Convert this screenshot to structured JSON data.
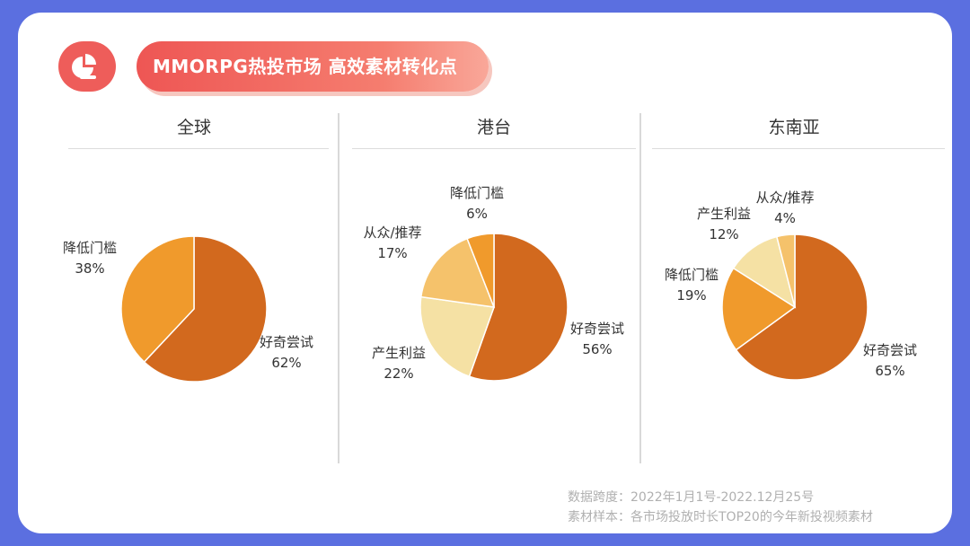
{
  "header": {
    "title": "MMORPG热投市场  高效素材转化点",
    "icon": "pie-chart-icon",
    "accent": "#ee5d5a"
  },
  "colors": {
    "dark_orange": "#d2691e",
    "orange": "#f09a2c",
    "light_orange": "#f5c26b",
    "cream": "#f5e1a4"
  },
  "chart_data": [
    {
      "type": "pie",
      "title": "全球",
      "slices": [
        {
          "label": "好奇尝试",
          "value": 62,
          "value_text": "62%",
          "color": "#d2691e"
        },
        {
          "label": "降低门槛",
          "value": 38,
          "value_text": "38%",
          "color": "#f09a2c"
        }
      ]
    },
    {
      "type": "pie",
      "title": "港台",
      "slices": [
        {
          "label": "好奇尝试",
          "value": 56,
          "value_text": "56%",
          "color": "#d2691e"
        },
        {
          "label": "产生利益",
          "value": 22,
          "value_text": "22%",
          "color": "#f5e1a4"
        },
        {
          "label": "从众/推荐",
          "value": 17,
          "value_text": "17%",
          "color": "#f5c26b"
        },
        {
          "label": "降低门槛",
          "value": 6,
          "value_text": "6%",
          "color": "#f09a2c"
        }
      ]
    },
    {
      "type": "pie",
      "title": "东南亚",
      "slices": [
        {
          "label": "好奇尝试",
          "value": 65,
          "value_text": "65%",
          "color": "#d2691e"
        },
        {
          "label": "降低门槛",
          "value": 19,
          "value_text": "19%",
          "color": "#f09a2c"
        },
        {
          "label": "产生利益",
          "value": 12,
          "value_text": "12%",
          "color": "#f5e1a4"
        },
        {
          "label": "从众/推荐",
          "value": 4,
          "value_text": "4%",
          "color": "#f5c26b"
        }
      ]
    }
  ],
  "footer": {
    "line1": "数据跨度：2022年1月1号-2022.12月25号",
    "line2": "素材样本：各市场投放时长TOP20的今年新投视频素材"
  }
}
